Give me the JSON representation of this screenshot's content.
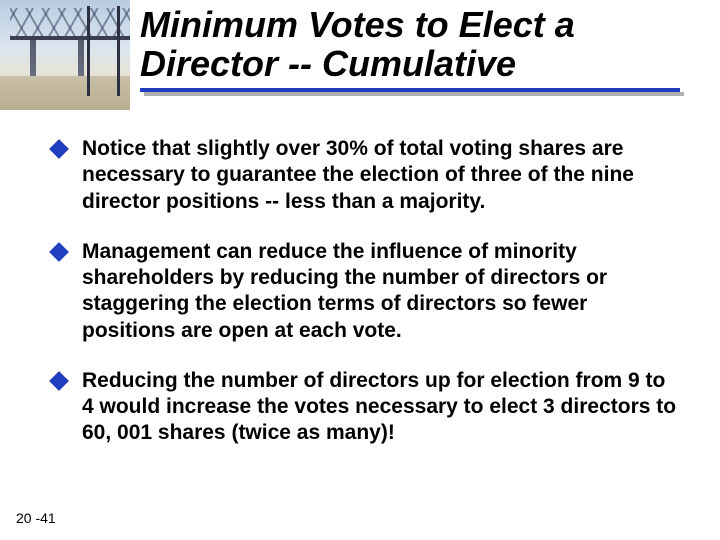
{
  "title": "Minimum Votes to Elect a Director -- Cumulative",
  "title_color": "#000000",
  "title_fontsize": 36,
  "rule_color": "#1f3fbf",
  "rule_shadow": "#b0b0b0",
  "bullet_marker_color": "#1f3fbf",
  "bullets": [
    "Notice that slightly over 30% of total voting shares are necessary to guarantee the election of  three of the nine director positions -- less than a majority.",
    "Management can reduce the influence of minority shareholders by reducing the number of directors or staggering the election terms of directors so fewer positions are open at each vote.",
    "Reducing the number of directors up for election from 9 to 4 would increase the votes necessary to elect 3 directors to 60, 001 shares (twice as many)!"
  ],
  "bullet_fontsize": 21,
  "bullet_fontweight": "bold",
  "slide_number": "20 -41",
  "background_color": "#ffffff",
  "thumbnail": {
    "description": "bridge-photo",
    "sky_color": "#b8cce0",
    "shore_color": "#c8c0a8",
    "structure_color": "#3a3f52"
  }
}
